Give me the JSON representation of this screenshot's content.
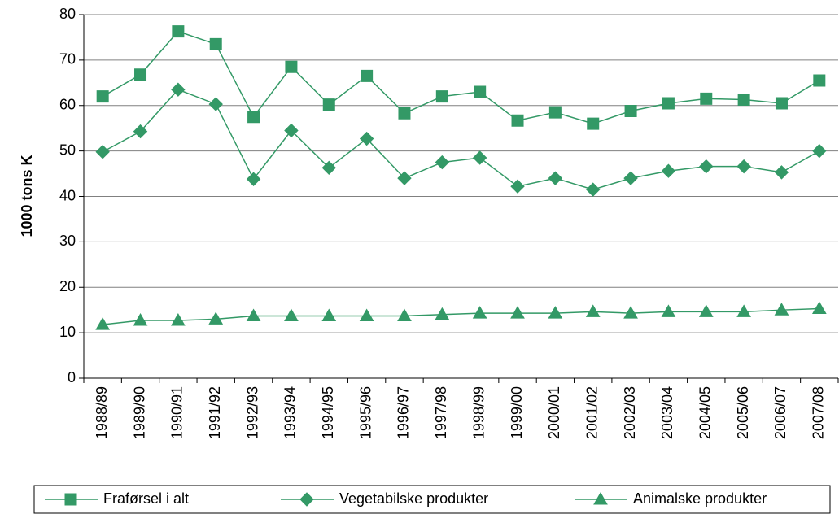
{
  "chart_data": {
    "type": "line",
    "ylabel": "1000 tons K",
    "categories": [
      "1988/89",
      "1989/90",
      "1990/91",
      "1991/92",
      "1992/93",
      "1993/94",
      "1994/95",
      "1995/96",
      "1996/97",
      "1997/98",
      "1998/99",
      "1999/00",
      "2000/01",
      "2001/02",
      "2002/03",
      "2003/04",
      "2004/05",
      "2005/06",
      "2006/07",
      "2007/08"
    ],
    "series": [
      {
        "name": "Fraførsel i alt",
        "color": "#339966",
        "marker": "square",
        "values": [
          62,
          66.8,
          76.3,
          73.5,
          57.5,
          68.5,
          60.2,
          66.5,
          58.3,
          62,
          63,
          56.7,
          58.5,
          56,
          58.8,
          60.5,
          61.5,
          61.3,
          60.5,
          65.5
        ]
      },
      {
        "name": "Vegetabilske produkter",
        "color": "#339966",
        "marker": "diamond",
        "values": [
          49.8,
          54.3,
          63.5,
          60.3,
          43.8,
          54.5,
          46.3,
          52.7,
          44,
          47.5,
          48.5,
          42.2,
          44,
          41.5,
          44,
          45.6,
          46.6,
          46.6,
          45.3,
          50
        ]
      },
      {
        "name": "Animalske produkter",
        "color": "#339966",
        "marker": "triangle",
        "values": [
          11.8,
          12.7,
          12.7,
          13,
          13.7,
          13.7,
          13.7,
          13.7,
          13.7,
          14,
          14.3,
          14.3,
          14.3,
          14.6,
          14.3,
          14.6,
          14.6,
          14.6,
          15,
          15.3
        ]
      }
    ],
    "ylim": [
      0,
      80
    ],
    "yticks": [
      0,
      10,
      20,
      30,
      40,
      50,
      60,
      70,
      80
    ],
    "grid": true,
    "legend": "bottom"
  }
}
